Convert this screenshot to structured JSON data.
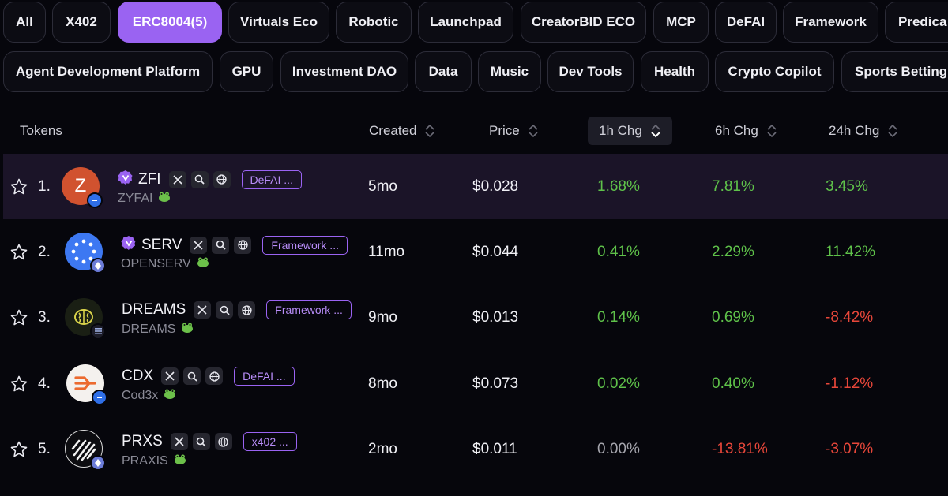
{
  "filters_row1": [
    {
      "label": "All",
      "active": false
    },
    {
      "label": "X402",
      "active": false
    },
    {
      "label": "ERC8004(5)",
      "active": true
    },
    {
      "label": "Virtuals Eco",
      "active": false
    },
    {
      "label": "Robotic",
      "active": false
    },
    {
      "label": "Launchpad",
      "active": false
    },
    {
      "label": "CreatorBID ECO",
      "active": false
    },
    {
      "label": "MCP",
      "active": false
    },
    {
      "label": "DeFAI",
      "active": false
    },
    {
      "label": "Framework",
      "active": false
    },
    {
      "label": "Predica",
      "active": false
    }
  ],
  "filters_row2": [
    {
      "label": "Agent Development Platform"
    },
    {
      "label": "GPU"
    },
    {
      "label": "Investment DAO"
    },
    {
      "label": "Data"
    },
    {
      "label": "Music"
    },
    {
      "label": "Dev Tools"
    },
    {
      "label": "Health"
    },
    {
      "label": "Crypto Copilot"
    },
    {
      "label": "Sports Betting"
    }
  ],
  "table": {
    "headers": {
      "tokens": "Tokens",
      "created": "Created",
      "price": "Price",
      "h1": "1h Chg",
      "h6": "6h Chg",
      "h24": "24h Chg"
    },
    "sorted_column": "1h Chg",
    "colors": {
      "positive": "#5fc24a",
      "negative": "#e8473a",
      "neutral": "#a5a5ad",
      "accent": "#9a63f2"
    },
    "rows": [
      {
        "rank": "1.",
        "symbol": "ZFI",
        "name": "ZYFAI",
        "verified": true,
        "tag": "DeFAI ...",
        "created": "5mo",
        "price": "$0.028",
        "h1": "1.68%",
        "h6": "7.81%",
        "h24": "3.45%",
        "avatar": "letter-z-avatar",
        "avatar_letter": "Z",
        "chain": "base",
        "highlight": true
      },
      {
        "rank": "2.",
        "symbol": "SERV",
        "name": "OPENSERV",
        "verified": true,
        "tag": "Framework ...",
        "created": "11mo",
        "price": "$0.044",
        "h1": "0.41%",
        "h6": "2.29%",
        "h24": "11.42%",
        "avatar": "openserv-logo",
        "chain": "ethereum",
        "highlight": false
      },
      {
        "rank": "3.",
        "symbol": "DREAMS",
        "name": "DREAMS",
        "verified": false,
        "tag": "Framework ...",
        "created": "9mo",
        "price": "$0.013",
        "h1": "0.14%",
        "h6": "0.69%",
        "h24": "-8.42%",
        "avatar": "brain-logo",
        "chain": "solana",
        "highlight": false
      },
      {
        "rank": "4.",
        "symbol": "CDX",
        "name": "Cod3x",
        "verified": false,
        "tag": "DeFAI ...",
        "created": "8mo",
        "price": "$0.073",
        "h1": "0.02%",
        "h6": "0.40%",
        "h24": "-1.12%",
        "avatar": "cod3x-logo",
        "chain": "base",
        "highlight": false
      },
      {
        "rank": "5.",
        "symbol": "PRXS",
        "name": "PRAXIS",
        "verified": false,
        "tag": "x402 ...",
        "created": "2mo",
        "price": "$0.011",
        "h1": "0.00%",
        "h6": "-13.81%",
        "h24": "-3.07%",
        "avatar": "praxis-logo",
        "chain": "ethereum",
        "highlight": false
      }
    ]
  }
}
